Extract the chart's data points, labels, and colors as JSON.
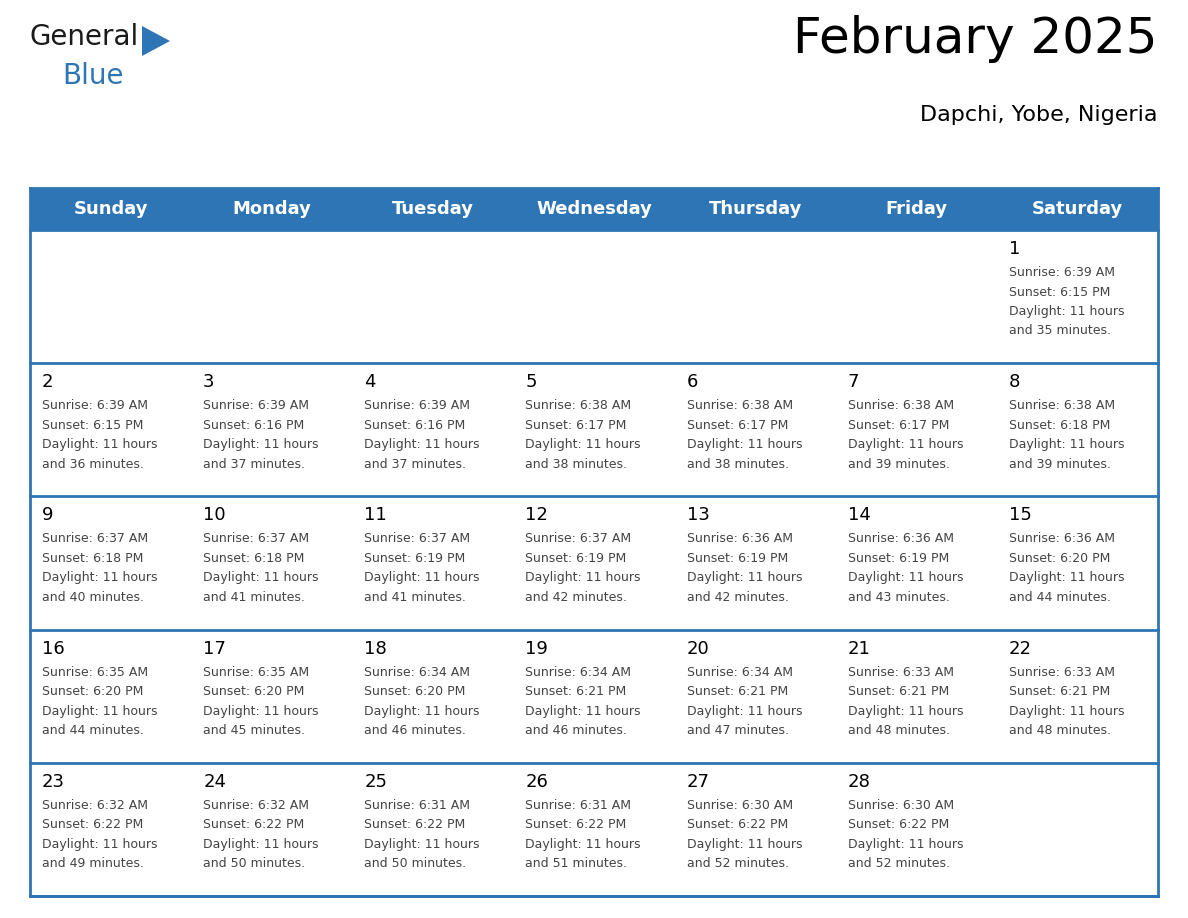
{
  "title": "February 2025",
  "subtitle": "Dapchi, Yobe, Nigeria",
  "header_bg_color": "#2E75B6",
  "header_text_color": "#FFFFFF",
  "line_color": "#2E75B6",
  "cell_bg_color": "#FFFFFF",
  "days_of_week": [
    "Sunday",
    "Monday",
    "Tuesday",
    "Wednesday",
    "Thursday",
    "Friday",
    "Saturday"
  ],
  "calendar_data": [
    [
      null,
      null,
      null,
      null,
      null,
      null,
      {
        "day": "1",
        "sunrise": "6:39 AM",
        "sunset": "6:15 PM",
        "daylight1": "11 hours",
        "daylight2": "and 35 minutes."
      }
    ],
    [
      {
        "day": "2",
        "sunrise": "6:39 AM",
        "sunset": "6:15 PM",
        "daylight1": "11 hours",
        "daylight2": "and 36 minutes."
      },
      {
        "day": "3",
        "sunrise": "6:39 AM",
        "sunset": "6:16 PM",
        "daylight1": "11 hours",
        "daylight2": "and 37 minutes."
      },
      {
        "day": "4",
        "sunrise": "6:39 AM",
        "sunset": "6:16 PM",
        "daylight1": "11 hours",
        "daylight2": "and 37 minutes."
      },
      {
        "day": "5",
        "sunrise": "6:38 AM",
        "sunset": "6:17 PM",
        "daylight1": "11 hours",
        "daylight2": "and 38 minutes."
      },
      {
        "day": "6",
        "sunrise": "6:38 AM",
        "sunset": "6:17 PM",
        "daylight1": "11 hours",
        "daylight2": "and 38 minutes."
      },
      {
        "day": "7",
        "sunrise": "6:38 AM",
        "sunset": "6:17 PM",
        "daylight1": "11 hours",
        "daylight2": "and 39 minutes."
      },
      {
        "day": "8",
        "sunrise": "6:38 AM",
        "sunset": "6:18 PM",
        "daylight1": "11 hours",
        "daylight2": "and 39 minutes."
      }
    ],
    [
      {
        "day": "9",
        "sunrise": "6:37 AM",
        "sunset": "6:18 PM",
        "daylight1": "11 hours",
        "daylight2": "and 40 minutes."
      },
      {
        "day": "10",
        "sunrise": "6:37 AM",
        "sunset": "6:18 PM",
        "daylight1": "11 hours",
        "daylight2": "and 41 minutes."
      },
      {
        "day": "11",
        "sunrise": "6:37 AM",
        "sunset": "6:19 PM",
        "daylight1": "11 hours",
        "daylight2": "and 41 minutes."
      },
      {
        "day": "12",
        "sunrise": "6:37 AM",
        "sunset": "6:19 PM",
        "daylight1": "11 hours",
        "daylight2": "and 42 minutes."
      },
      {
        "day": "13",
        "sunrise": "6:36 AM",
        "sunset": "6:19 PM",
        "daylight1": "11 hours",
        "daylight2": "and 42 minutes."
      },
      {
        "day": "14",
        "sunrise": "6:36 AM",
        "sunset": "6:19 PM",
        "daylight1": "11 hours",
        "daylight2": "and 43 minutes."
      },
      {
        "day": "15",
        "sunrise": "6:36 AM",
        "sunset": "6:20 PM",
        "daylight1": "11 hours",
        "daylight2": "and 44 minutes."
      }
    ],
    [
      {
        "day": "16",
        "sunrise": "6:35 AM",
        "sunset": "6:20 PM",
        "daylight1": "11 hours",
        "daylight2": "and 44 minutes."
      },
      {
        "day": "17",
        "sunrise": "6:35 AM",
        "sunset": "6:20 PM",
        "daylight1": "11 hours",
        "daylight2": "and 45 minutes."
      },
      {
        "day": "18",
        "sunrise": "6:34 AM",
        "sunset": "6:20 PM",
        "daylight1": "11 hours",
        "daylight2": "and 46 minutes."
      },
      {
        "day": "19",
        "sunrise": "6:34 AM",
        "sunset": "6:21 PM",
        "daylight1": "11 hours",
        "daylight2": "and 46 minutes."
      },
      {
        "day": "20",
        "sunrise": "6:34 AM",
        "sunset": "6:21 PM",
        "daylight1": "11 hours",
        "daylight2": "and 47 minutes."
      },
      {
        "day": "21",
        "sunrise": "6:33 AM",
        "sunset": "6:21 PM",
        "daylight1": "11 hours",
        "daylight2": "and 48 minutes."
      },
      {
        "day": "22",
        "sunrise": "6:33 AM",
        "sunset": "6:21 PM",
        "daylight1": "11 hours",
        "daylight2": "and 48 minutes."
      }
    ],
    [
      {
        "day": "23",
        "sunrise": "6:32 AM",
        "sunset": "6:22 PM",
        "daylight1": "11 hours",
        "daylight2": "and 49 minutes."
      },
      {
        "day": "24",
        "sunrise": "6:32 AM",
        "sunset": "6:22 PM",
        "daylight1": "11 hours",
        "daylight2": "and 50 minutes."
      },
      {
        "day": "25",
        "sunrise": "6:31 AM",
        "sunset": "6:22 PM",
        "daylight1": "11 hours",
        "daylight2": "and 50 minutes."
      },
      {
        "day": "26",
        "sunrise": "6:31 AM",
        "sunset": "6:22 PM",
        "daylight1": "11 hours",
        "daylight2": "and 51 minutes."
      },
      {
        "day": "27",
        "sunrise": "6:30 AM",
        "sunset": "6:22 PM",
        "daylight1": "11 hours",
        "daylight2": "and 52 minutes."
      },
      {
        "day": "28",
        "sunrise": "6:30 AM",
        "sunset": "6:22 PM",
        "daylight1": "11 hours",
        "daylight2": "and 52 minutes."
      },
      null
    ]
  ],
  "logo_general_color": "#1a1a1a",
  "logo_blue_color": "#2E75B6",
  "logo_triangle_color": "#2E75B6",
  "title_fontsize": 36,
  "subtitle_fontsize": 16,
  "header_fontsize": 13,
  "day_num_fontsize": 13,
  "cell_text_fontsize": 9
}
